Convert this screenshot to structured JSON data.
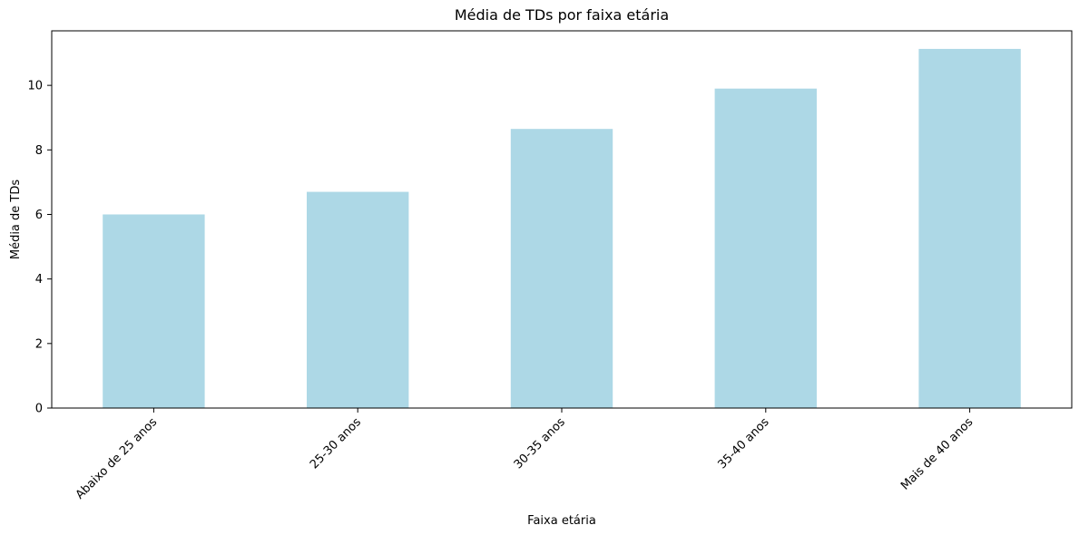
{
  "chart_data": {
    "type": "bar",
    "title": "Média de TDs por faixa etária",
    "xlabel": "Faixa etária",
    "ylabel": "Média de TDs",
    "categories": [
      "Abaixo de 25 anos",
      "25-30 anos",
      "30-35 anos",
      "35-40 anos",
      "Mais de 40 anos"
    ],
    "values": [
      6.0,
      6.7,
      8.65,
      9.9,
      11.13
    ],
    "ylim": [
      0,
      11.69
    ],
    "yticks": [
      0,
      2,
      4,
      6,
      8,
      10
    ],
    "grid": false,
    "legend": "none",
    "bar_color": "#add8e6"
  }
}
